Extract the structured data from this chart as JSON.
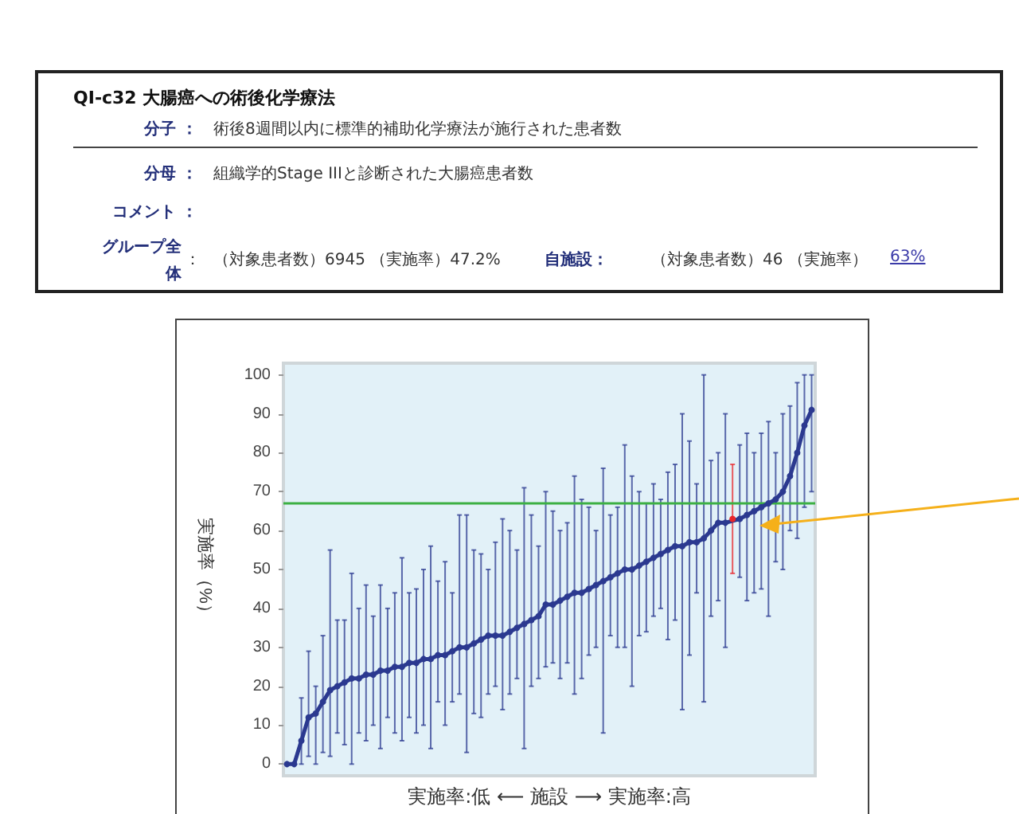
{
  "chart_data": {
    "type": "line",
    "title": "QI-c32 大腸癌への術後化学療法",
    "annotations": [
      "分子 ：",
      "術後8週間以内に標準的補助化学療法が施行された患者数",
      "分母 ：",
      "組織学的Stage IIIと診断された大腸癌患者数",
      "コメント ：",
      "グループ全体",
      "：",
      "（対象患者数）6945 （実施率）47.2%",
      "自施設：",
      "（対象患者数）46 （実施率）",
      "63%"
    ],
    "xlabel": "実施率:低 ⟵ 施設 ⟶ 実施率:高",
    "ylabel": "実施率（%）",
    "categories": [
      null,
      null,
      null,
      null,
      null,
      null,
      null,
      null,
      null,
      null,
      null,
      null,
      null,
      null,
      null,
      null,
      null,
      null,
      null,
      null,
      null,
      null,
      null,
      null,
      null,
      null,
      null,
      null,
      null,
      null,
      null,
      null,
      null,
      null,
      null,
      null,
      null,
      null,
      null,
      null,
      null,
      null,
      null,
      null,
      null,
      null,
      null,
      null,
      null,
      null,
      null,
      null,
      null,
      null,
      null,
      null,
      null,
      null,
      null,
      null,
      null,
      null,
      null,
      null,
      null,
      null,
      null,
      null,
      null,
      null,
      null,
      null,
      null,
      null
    ],
    "series": [
      {
        "color": "#2b3990",
        "values": [
          0,
          0,
          6,
          12,
          13,
          16,
          19,
          20,
          21,
          22,
          22,
          23,
          23,
          24,
          24,
          25,
          25,
          26,
          26,
          27,
          27,
          28,
          28,
          29,
          30,
          30,
          31,
          32,
          33,
          33,
          33,
          34,
          35,
          36,
          37,
          38,
          41,
          41,
          42,
          43,
          44,
          44,
          45,
          46,
          47,
          48,
          49,
          50,
          50,
          51,
          52,
          53,
          54,
          55,
          56,
          56,
          57,
          57,
          58,
          60,
          62,
          62,
          null,
          63,
          64,
          65,
          66,
          67,
          68,
          70,
          74,
          80,
          87,
          91
        ],
        "errors": [
          null,
          null,
          [
            0,
            17
          ],
          [
            2,
            29
          ],
          [
            0,
            20
          ],
          [
            3,
            33
          ],
          [
            2,
            55
          ],
          [
            8,
            37
          ],
          [
            5,
            37
          ],
          [
            0,
            49
          ],
          [
            8,
            40
          ],
          [
            6,
            46
          ],
          [
            10,
            38
          ],
          [
            4,
            46
          ],
          [
            12,
            40
          ],
          [
            8,
            44
          ],
          [
            6,
            53
          ],
          [
            12,
            44
          ],
          [
            8,
            45
          ],
          [
            10,
            50
          ],
          [
            4,
            56
          ],
          [
            16,
            47
          ],
          [
            10,
            52
          ],
          [
            16,
            44
          ],
          [
            18,
            64
          ],
          [
            3,
            64
          ],
          [
            13,
            55
          ],
          [
            12,
            54
          ],
          [
            18,
            50
          ],
          [
            20,
            57
          ],
          [
            14,
            63
          ],
          [
            18,
            60
          ],
          [
            22,
            55
          ],
          [
            4,
            71
          ],
          [
            20,
            64
          ],
          [
            22,
            56
          ],
          [
            25,
            70
          ],
          [
            26,
            65
          ],
          [
            22,
            60
          ],
          [
            26,
            62
          ],
          [
            18,
            74
          ],
          [
            22,
            68
          ],
          [
            28,
            66
          ],
          [
            30,
            60
          ],
          [
            8,
            76
          ],
          [
            33,
            64
          ],
          [
            30,
            66
          ],
          [
            30,
            82
          ],
          [
            20,
            74
          ],
          [
            33,
            70
          ],
          [
            34,
            67
          ],
          [
            38,
            72
          ],
          [
            40,
            68
          ],
          [
            32,
            75
          ],
          [
            37,
            77
          ],
          [
            14,
            90
          ],
          [
            28,
            83
          ],
          [
            44,
            72
          ],
          [
            16,
            100
          ],
          [
            38,
            78
          ],
          [
            42,
            80
          ],
          [
            30,
            90
          ],
          null,
          [
            48,
            82
          ],
          [
            42,
            85
          ],
          [
            44,
            80
          ],
          [
            45,
            85
          ],
          [
            38,
            88
          ],
          [
            52,
            80
          ],
          [
            50,
            90
          ],
          [
            60,
            92
          ],
          [
            58,
            98
          ],
          [
            66,
            100
          ],
          [
            70,
            100
          ]
        ]
      },
      {
        "color": "#e8262b",
        "values": [
          null,
          null,
          null,
          null,
          null,
          null,
          null,
          null,
          null,
          null,
          null,
          null,
          null,
          null,
          null,
          null,
          null,
          null,
          null,
          null,
          null,
          null,
          null,
          null,
          null,
          null,
          null,
          null,
          null,
          null,
          null,
          null,
          null,
          null,
          null,
          null,
          null,
          null,
          null,
          null,
          null,
          null,
          null,
          null,
          null,
          null,
          null,
          null,
          null,
          null,
          null,
          null,
          null,
          null,
          null,
          null,
          null,
          null,
          null,
          null,
          null,
          null,
          63,
          null,
          null,
          null,
          null,
          null,
          null,
          null,
          null,
          null,
          null,
          null
        ],
        "errors": [
          null,
          null,
          null,
          null,
          null,
          null,
          null,
          null,
          null,
          null,
          null,
          null,
          null,
          null,
          null,
          null,
          null,
          null,
          null,
          null,
          null,
          null,
          null,
          null,
          null,
          null,
          null,
          null,
          null,
          null,
          null,
          null,
          null,
          null,
          null,
          null,
          null,
          null,
          null,
          null,
          null,
          null,
          null,
          null,
          null,
          null,
          null,
          null,
          null,
          null,
          null,
          null,
          null,
          null,
          null,
          null,
          null,
          null,
          null,
          null,
          null,
          null,
          [
            49,
            77
          ],
          null,
          null,
          null,
          null,
          null,
          null,
          null,
          null,
          null,
          null,
          null
        ]
      }
    ],
    "ylim": [
      -3,
      103
    ],
    "yticks": [
      0,
      10,
      20,
      30,
      40,
      50,
      60,
      70,
      80,
      90,
      100
    ],
    "ref_lines": [
      {
        "axis": "y",
        "value": 67,
        "color": "#3cb043"
      }
    ],
    "marker": "circle",
    "line_style": "solid"
  }
}
